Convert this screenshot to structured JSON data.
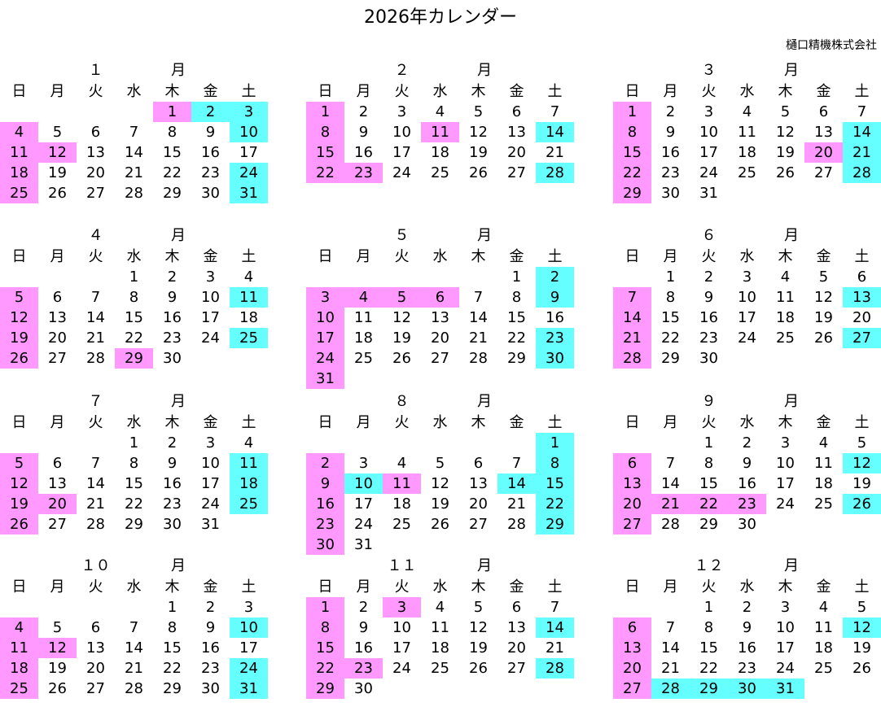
{
  "title": "2026年カレンダー",
  "company": "樋口精機株式会社",
  "year": 2026,
  "weekdays": [
    "日",
    "月",
    "火",
    "水",
    "木",
    "金",
    "土"
  ],
  "colors": {
    "holiday": "#ff99ff",
    "saturday": "#66ffff"
  },
  "months": [
    {
      "label": "１",
      "kanji": "月",
      "pink": [
        1,
        4,
        11,
        12,
        18,
        25
      ],
      "cyan": [
        2,
        3,
        10,
        24,
        31
      ]
    },
    {
      "label": "２",
      "kanji": "月",
      "pink": [
        1,
        8,
        11,
        15,
        22,
        23
      ],
      "cyan": [
        14,
        28
      ]
    },
    {
      "label": "３",
      "kanji": "月",
      "pink": [
        1,
        8,
        15,
        20,
        22,
        29
      ],
      "cyan": [
        14,
        21,
        28
      ]
    },
    {
      "label": "４",
      "kanji": "月",
      "pink": [
        5,
        12,
        19,
        26,
        29
      ],
      "cyan": [
        11,
        25
      ]
    },
    {
      "label": "５",
      "kanji": "月",
      "pink": [
        3,
        4,
        5,
        6,
        10,
        17,
        24,
        31
      ],
      "cyan": [
        2,
        9,
        23,
        30
      ]
    },
    {
      "label": "６",
      "kanji": "月",
      "pink": [
        7,
        14,
        21,
        28
      ],
      "cyan": [
        13,
        27
      ]
    },
    {
      "label": "７",
      "kanji": "月",
      "pink": [
        5,
        12,
        19,
        20,
        26
      ],
      "cyan": [
        11,
        18,
        25
      ]
    },
    {
      "label": "８",
      "kanji": "月",
      "pink": [
        2,
        9,
        11,
        16,
        23,
        30
      ],
      "cyan": [
        1,
        8,
        10,
        14,
        15,
        22,
        29
      ]
    },
    {
      "label": "９",
      "kanji": "月",
      "pink": [
        6,
        13,
        20,
        21,
        22,
        23,
        27
      ],
      "cyan": [
        12,
        26
      ]
    },
    {
      "label": "１０",
      "kanji": "月",
      "pink": [
        4,
        11,
        12,
        18,
        25
      ],
      "cyan": [
        10,
        24,
        31
      ]
    },
    {
      "label": "１１",
      "kanji": "月",
      "pink": [
        1,
        3,
        8,
        15,
        22,
        23,
        29
      ],
      "cyan": [
        14,
        28
      ]
    },
    {
      "label": "１２",
      "kanji": "月",
      "pink": [
        6,
        13,
        20,
        27
      ],
      "cyan": [
        12,
        28,
        29,
        30,
        31
      ]
    }
  ]
}
